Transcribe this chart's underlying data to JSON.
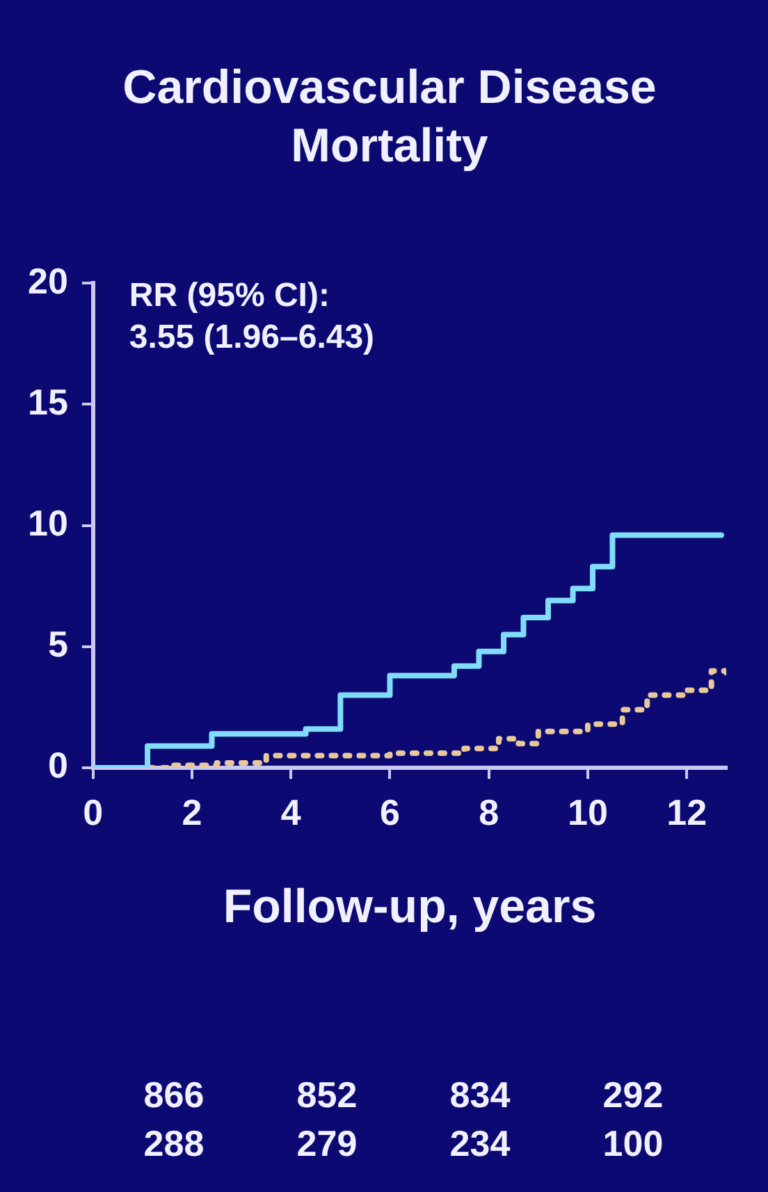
{
  "chart_data": {
    "type": "step",
    "title": "Cardiovascular Disease Mortality",
    "xlabel": "Follow-up, years",
    "annotations": [
      "RR (95% CI):\n3.55 (1.96–6.43)",
      "866",
      "852",
      "834",
      "292",
      "288",
      "279",
      "234",
      "100"
    ],
    "xlim": [
      0,
      12.8
    ],
    "xticks": [
      0,
      2,
      4,
      6,
      8,
      10,
      12
    ],
    "ylim": [
      0,
      20
    ],
    "yticks": [
      0,
      5,
      10,
      15,
      20
    ],
    "grid": false,
    "legend": false,
    "series": [
      {
        "color": "#80dcf8",
        "line_style": "solid",
        "x": [
          0,
          1.1,
          2.4,
          4.3,
          5.0,
          6.0,
          7.3,
          7.8,
          8.3,
          8.7,
          9.2,
          9.7,
          10.1,
          10.5,
          12.7
        ],
        "values": [
          0,
          0.9,
          1.4,
          1.6,
          3.0,
          3.8,
          4.2,
          4.8,
          5.5,
          6.2,
          6.9,
          7.4,
          8.3,
          9.6,
          9.6
        ]
      },
      {
        "color": "#e8c89a",
        "line_style": "dotted",
        "x": [
          0,
          1.5,
          2.5,
          3.5,
          6.0,
          7.5,
          8.2,
          8.6,
          9.0,
          10.0,
          10.7,
          11.2,
          12.0,
          12.5,
          12.8
        ],
        "values": [
          0,
          0.1,
          0.2,
          0.5,
          0.6,
          0.8,
          1.2,
          1.0,
          1.5,
          1.8,
          2.4,
          3.0,
          3.2,
          4.0,
          3.9
        ]
      }
    ]
  }
}
